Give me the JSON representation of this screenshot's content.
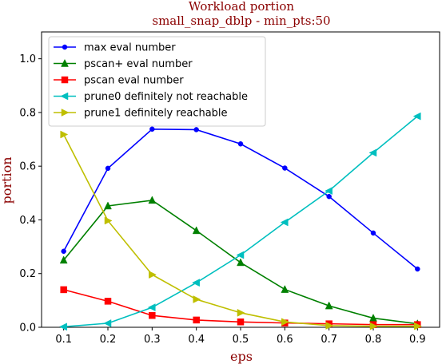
{
  "chart_data": {
    "type": "line",
    "title": "Workload portion",
    "subtitle": "small_snap_dblp - min_pts:50",
    "xlabel": "eps",
    "ylabel": "portion",
    "xlim": [
      0.05,
      0.95
    ],
    "ylim": [
      0.0,
      1.1
    ],
    "xticks": [
      "0.1",
      "0.2",
      "0.3",
      "0.4",
      "0.5",
      "0.6",
      "0.7",
      "0.8",
      "0.9"
    ],
    "yticks": [
      "0.0",
      "0.2",
      "0.4",
      "0.6",
      "0.8",
      "1.0"
    ],
    "grid": false,
    "legend_position": "top-left",
    "x": [
      0.1,
      0.2,
      0.3,
      0.4,
      0.5,
      0.6,
      0.7,
      0.8,
      0.9
    ],
    "series": [
      {
        "name": "max eval number",
        "color": "#0000ff",
        "marker": "circle",
        "values": [
          0.283,
          0.592,
          0.738,
          0.736,
          0.683,
          0.593,
          0.487,
          0.351,
          0.217
        ]
      },
      {
        "name": "pscan+ eval number",
        "color": "#008000",
        "marker": "triangle-up",
        "values": [
          0.25,
          0.452,
          0.473,
          0.36,
          0.241,
          0.141,
          0.08,
          0.034,
          0.013
        ]
      },
      {
        "name": "pscan eval number",
        "color": "#ff0000",
        "marker": "square",
        "values": [
          0.14,
          0.097,
          0.044,
          0.027,
          0.02,
          0.016,
          0.013,
          0.01,
          0.01
        ]
      },
      {
        "name": "prune0 definitely not reachable",
        "color": "#00bfbf",
        "marker": "triangle-left",
        "values": [
          0.002,
          0.015,
          0.074,
          0.166,
          0.269,
          0.391,
          0.508,
          0.65,
          0.786
        ]
      },
      {
        "name": "prune1 definitely reachable",
        "color": "#bfbf00",
        "marker": "triangle-right",
        "values": [
          0.718,
          0.397,
          0.196,
          0.104,
          0.054,
          0.02,
          0.006,
          0.004,
          0.004
        ]
      }
    ]
  }
}
